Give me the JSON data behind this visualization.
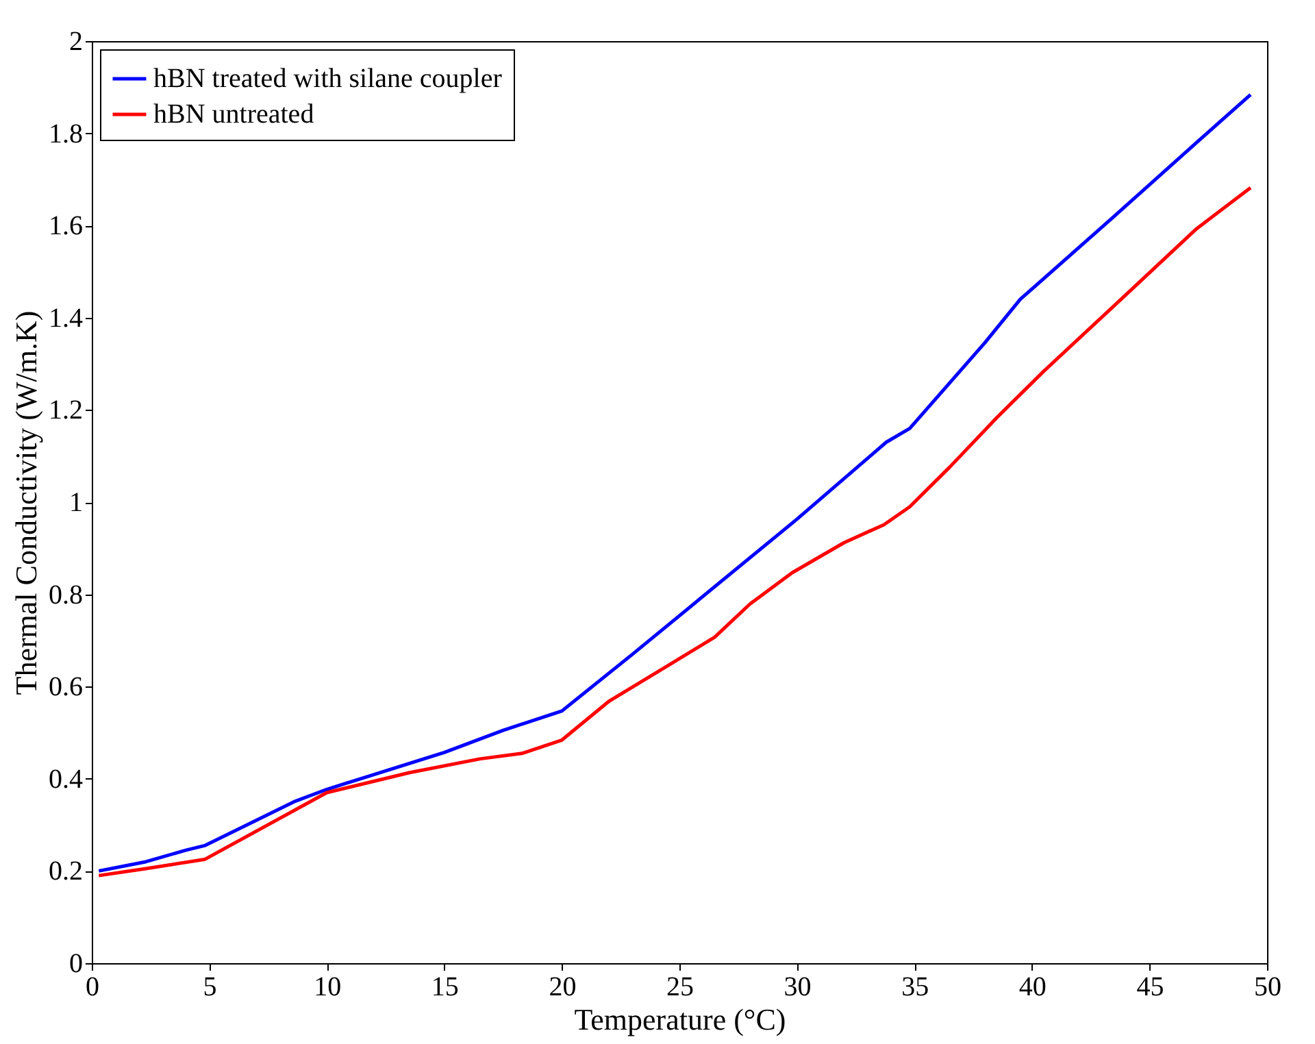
{
  "chart_data": {
    "type": "line",
    "xlabel": "Temperature (°C)",
    "ylabel": "Thermal Conductivity (W/m.K)",
    "xlim": [
      0,
      50
    ],
    "ylim": [
      0,
      2
    ],
    "xticks": [
      0,
      5,
      10,
      15,
      20,
      25,
      30,
      35,
      40,
      45,
      50
    ],
    "yticks": [
      0,
      0.2,
      0.4,
      0.6,
      0.8,
      1,
      1.2,
      1.4,
      1.6,
      1.8,
      2
    ],
    "grid": false,
    "legend": "top left",
    "line_style": "solid",
    "marker": "none",
    "series": [
      {
        "name": "hBN treated with silane coupler",
        "color": "#0000ff",
        "x": [
          0.3,
          2.3,
          4,
          4.8,
          8.6,
          10,
          15,
          17.5,
          20,
          23,
          30,
          33.8,
          34.8,
          38,
          39.5,
          43.5,
          47,
          49.3
        ],
        "values": [
          0.2,
          0.22,
          0.245,
          0.255,
          0.35,
          0.377,
          0.457,
          0.505,
          0.547,
          0.67,
          0.963,
          1.13,
          1.16,
          1.346,
          1.44,
          1.62,
          1.78,
          1.884
        ]
      },
      {
        "name": "hBN untreated",
        "color": "#ff0000",
        "x": [
          0.3,
          2.3,
          4.8,
          10,
          13.5,
          16.5,
          18.3,
          20,
          22,
          24.5,
          26.5,
          28,
          29.8,
          32,
          33.7,
          34.8,
          36.5,
          38.5,
          40.5,
          44,
          47,
          49.3
        ],
        "values": [
          0.19,
          0.205,
          0.225,
          0.37,
          0.413,
          0.443,
          0.455,
          0.484,
          0.568,
          0.645,
          0.707,
          0.779,
          0.847,
          0.912,
          0.951,
          0.99,
          1.076,
          1.183,
          1.284,
          1.45,
          1.593,
          1.682
        ]
      }
    ]
  }
}
